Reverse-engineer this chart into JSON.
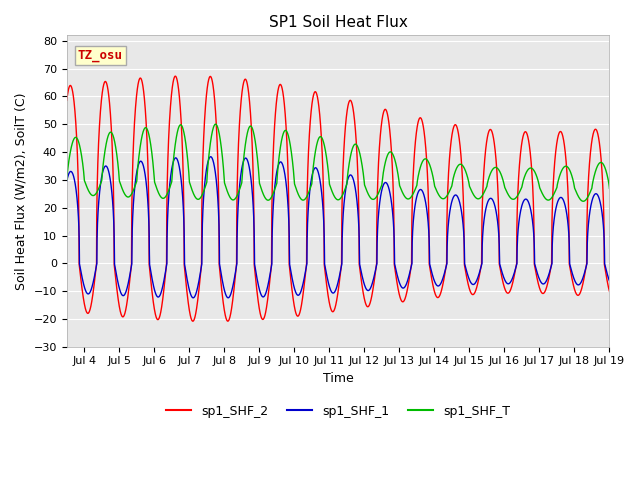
{
  "title": "SP1 Soil Heat Flux",
  "xlabel": "Time",
  "ylabel": "Soil Heat Flux (W/m2), SoilT (C)",
  "ylim": [
    -30,
    82
  ],
  "yticks": [
    -30,
    -20,
    -10,
    0,
    10,
    20,
    30,
    40,
    50,
    60,
    70,
    80
  ],
  "bg_color": "#e8e8e8",
  "fig_color": "#ffffff",
  "annotation_text": "TZ_osu",
  "annotation_color": "#cc0000",
  "annotation_bg": "#ffffcc",
  "annotation_border": "#aaaaaa",
  "legend_entries": [
    "sp1_SHF_2",
    "sp1_SHF_1",
    "sp1_SHF_T"
  ],
  "line_colors": [
    "#ff0000",
    "#0000cc",
    "#00bb00"
  ],
  "line_width": 1.0,
  "start_day": 3.5,
  "end_day": 19.0,
  "n_points": 5000,
  "days_ticks": [
    4,
    5,
    6,
    7,
    8,
    9,
    10,
    11,
    12,
    13,
    14,
    15,
    16,
    17,
    18,
    19
  ],
  "grid_color": "#ffffff",
  "tick_fontsize": 8,
  "label_fontsize": 9,
  "title_fontsize": 11
}
